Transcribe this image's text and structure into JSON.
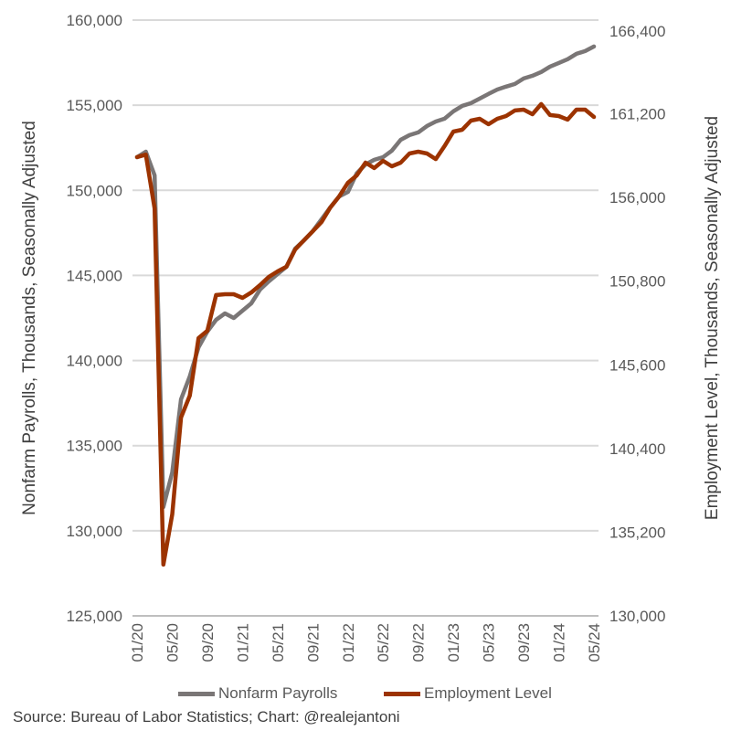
{
  "chart_data": {
    "type": "line",
    "title": "",
    "x": [
      "01/20",
      "02/20",
      "03/20",
      "04/20",
      "05/20",
      "06/20",
      "07/20",
      "08/20",
      "09/20",
      "10/20",
      "11/20",
      "12/20",
      "01/21",
      "02/21",
      "03/21",
      "04/21",
      "05/21",
      "06/21",
      "07/21",
      "08/21",
      "09/21",
      "10/21",
      "11/21",
      "12/21",
      "01/22",
      "02/22",
      "03/22",
      "04/22",
      "05/22",
      "06/22",
      "07/22",
      "08/22",
      "09/22",
      "10/22",
      "11/22",
      "12/22",
      "01/23",
      "02/23",
      "03/23",
      "04/23",
      "05/23",
      "06/23",
      "07/23",
      "08/23",
      "09/23",
      "10/23",
      "11/23",
      "12/23",
      "01/24",
      "02/24",
      "03/24",
      "04/24",
      "05/24"
    ],
    "x_tick_labels": [
      "01/20",
      "05/20",
      "09/20",
      "01/21",
      "05/21",
      "09/21",
      "01/22",
      "05/22",
      "09/22",
      "01/23",
      "05/23",
      "09/23",
      "01/24",
      "05/24"
    ],
    "y_left": {
      "label": "Nonfarm Payrolls, Thousands, Seasonally Adjusted",
      "lim": [
        125000,
        160000
      ],
      "ticks": [
        "125,000",
        "130,000",
        "135,000",
        "140,000",
        "145,000",
        "150,000",
        "155,000",
        "160,000"
      ]
    },
    "y_right": {
      "label": "Employment Level, Thousands, Seasonally Adjusted",
      "lim": [
        130000,
        166400
      ],
      "ticks": [
        "130,000",
        "135,200",
        "140,400",
        "145,600",
        "150,800",
        "156,000",
        "161,200",
        "166,400"
      ]
    },
    "grid": true,
    "legend_position": "bottom",
    "series": [
      {
        "name": "Nonfarm Payrolls",
        "axis": "left",
        "color": "#7a7676",
        "values": [
          151950,
          152270,
          150880,
          131400,
          133430,
          137720,
          139070,
          140780,
          141700,
          142390,
          142770,
          142500,
          142930,
          143360,
          144170,
          144650,
          145080,
          145510,
          146580,
          147060,
          147600,
          148300,
          149000,
          149640,
          149910,
          151000,
          151520,
          151790,
          151950,
          152330,
          152970,
          153240,
          153400,
          153780,
          154040,
          154210,
          154640,
          154960,
          155120,
          155390,
          155660,
          155920,
          156090,
          156250,
          156570,
          156730,
          156950,
          157270,
          157480,
          157700,
          158020,
          158180,
          158450
        ]
      },
      {
        "name": "Employment Level",
        "axis": "right",
        "color": "#9c3300",
        "values": [
          158030,
          158180,
          154900,
          133130,
          136200,
          142120,
          143460,
          146970,
          147420,
          149600,
          149650,
          149650,
          149430,
          149760,
          150210,
          150710,
          151050,
          151330,
          152390,
          152950,
          153500,
          154060,
          154950,
          155630,
          156460,
          156910,
          157690,
          157360,
          157800,
          157470,
          157690,
          158250,
          158360,
          158250,
          157910,
          158700,
          159590,
          159700,
          160260,
          160370,
          160040,
          160370,
          160540,
          160880,
          160930,
          160650,
          161270,
          160600,
          160540,
          160320,
          160930,
          160930,
          160480
        ]
      }
    ]
  },
  "source": "Source: Bureau of Labor Statistics; Chart: @realejantoni"
}
